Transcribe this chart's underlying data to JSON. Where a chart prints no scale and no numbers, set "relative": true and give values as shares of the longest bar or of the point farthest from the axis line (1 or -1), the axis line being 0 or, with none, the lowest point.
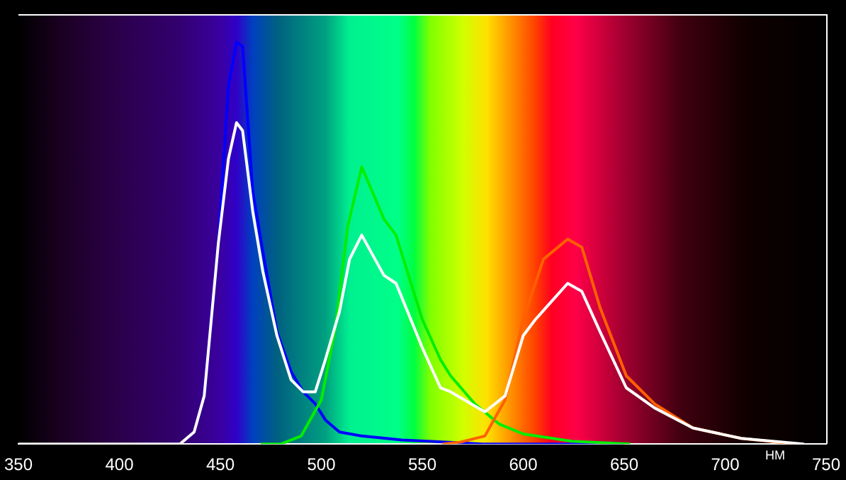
{
  "chart_data": {
    "type": "line",
    "relative": true,
    "xlabel": "НМ",
    "xlim": [
      350,
      750
    ],
    "xticks": [
      350,
      400,
      450,
      500,
      550,
      600,
      650,
      700,
      750
    ],
    "grid": false,
    "legend": false,
    "marker": "none",
    "line_style": "solid",
    "series": [
      {
        "color": "#0000ff",
        "x": [
          442,
          449,
          454,
          458,
          461,
          466,
          471,
          478,
          485,
          491,
          497,
          502,
          509,
          520,
          540,
          560,
          580,
          650
        ],
        "values": [
          0.12,
          0.5,
          0.89,
          1.0,
          0.99,
          0.63,
          0.48,
          0.28,
          0.18,
          0.13,
          0.1,
          0.06,
          0.03,
          0.02,
          0.01,
          0.005,
          0,
          0
        ]
      },
      {
        "color": "#00ee00",
        "x": [
          470,
          480,
          490,
          500,
          507,
          513,
          520,
          531,
          537,
          550,
          559,
          564,
          576,
          588,
          600,
          624,
          653
        ],
        "values": [
          0,
          0,
          0.02,
          0.11,
          0.29,
          0.54,
          0.69,
          0.56,
          0.52,
          0.31,
          0.21,
          0.17,
          0.1,
          0.05,
          0.025,
          0.007,
          0
        ]
      },
      {
        "color": "#ff6000",
        "x": [
          560,
          569,
          581,
          591,
          600,
          610,
          622,
          629,
          638,
          651,
          665,
          684,
          708,
          735
        ],
        "values": [
          0,
          0.005,
          0.02,
          0.11,
          0.31,
          0.46,
          0.51,
          0.49,
          0.34,
          0.17,
          0.1,
          0.04,
          0.014,
          0
        ]
      },
      {
        "color": "#ffffff",
        "x": [
          350,
          430,
          437,
          442,
          449,
          454,
          458,
          461,
          466,
          471,
          478,
          485,
          491,
          497,
          502,
          509,
          514,
          520,
          531,
          537,
          550,
          559,
          564,
          581,
          591,
          600,
          606,
          622,
          629,
          638,
          651,
          665,
          684,
          708,
          739
        ],
        "values": [
          0,
          0,
          0.03,
          0.12,
          0.5,
          0.71,
          0.8,
          0.78,
          0.58,
          0.43,
          0.27,
          0.16,
          0.13,
          0.13,
          0.21,
          0.33,
          0.46,
          0.52,
          0.42,
          0.4,
          0.24,
          0.14,
          0.13,
          0.08,
          0.12,
          0.27,
          0.31,
          0.4,
          0.38,
          0.28,
          0.14,
          0.09,
          0.04,
          0.014,
          0
        ]
      }
    ]
  }
}
